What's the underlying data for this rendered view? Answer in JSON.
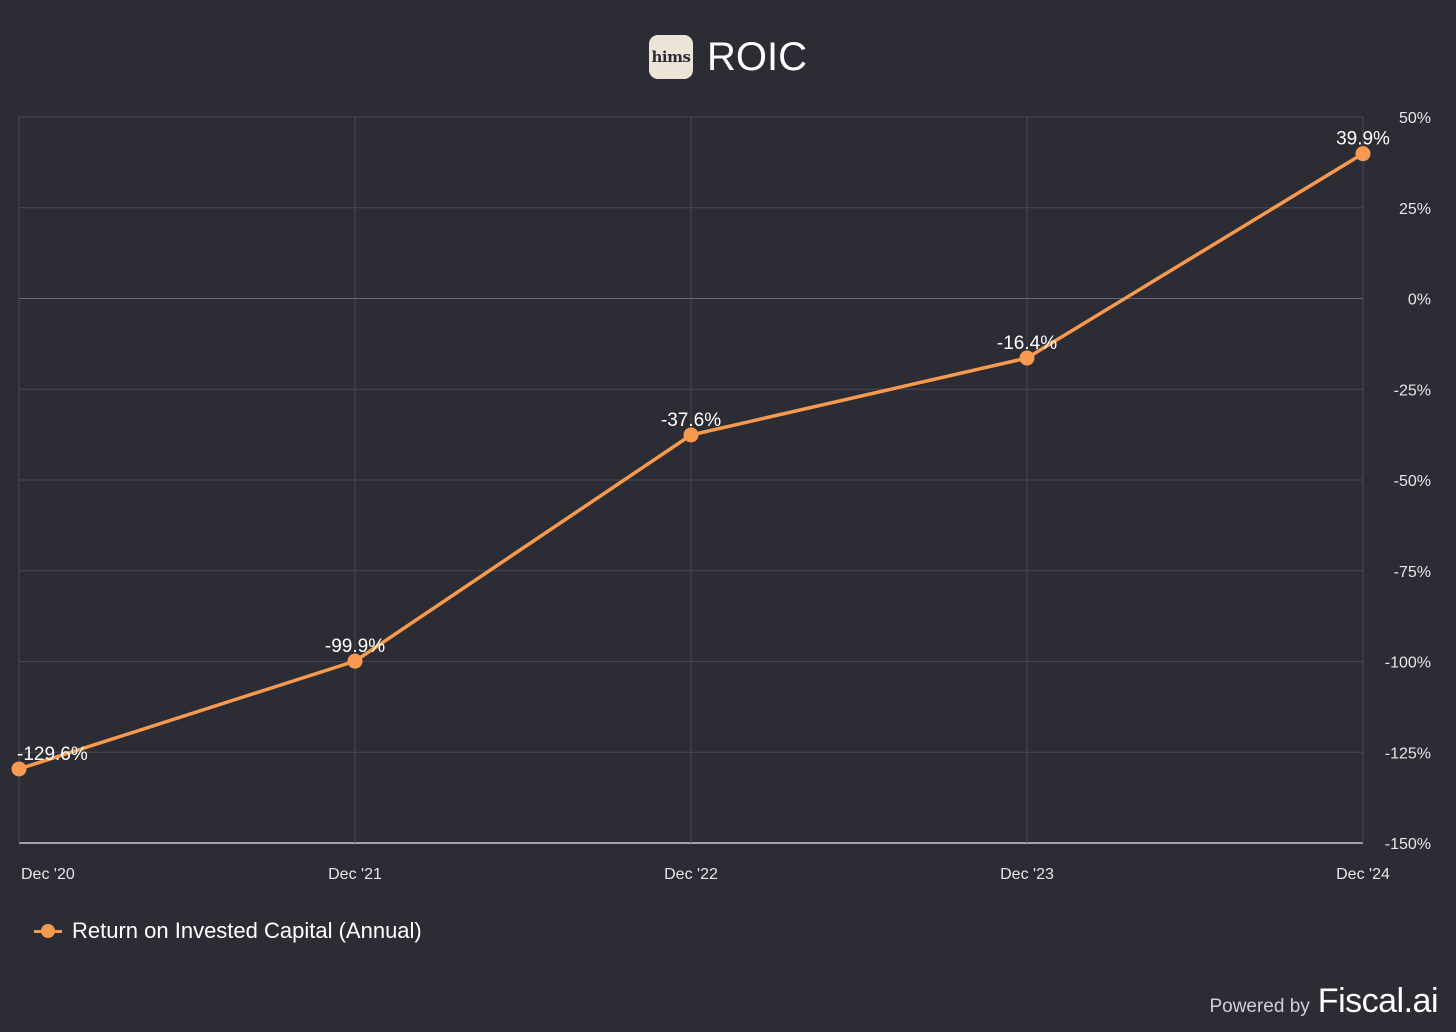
{
  "header": {
    "logo_text": "hims",
    "title": "ROIC"
  },
  "chart_data": {
    "type": "line",
    "title": "ROIC",
    "categories": [
      "Dec '20",
      "Dec '21",
      "Dec '22",
      "Dec '23",
      "Dec '24"
    ],
    "series": [
      {
        "name": "Return on Invested Capital (Annual)",
        "values": [
          -129.6,
          -99.9,
          -37.6,
          -16.4,
          39.9
        ],
        "labels": [
          "-129.6%",
          "-99.9%",
          "-37.6%",
          "-16.4%",
          "39.9%"
        ]
      }
    ],
    "ylim": [
      -150,
      50
    ],
    "yticks": [
      50,
      25,
      0,
      -25,
      -50,
      -75,
      -100,
      -125,
      -150
    ],
    "ytick_labels": [
      "50%",
      "25%",
      "0%",
      "-25%",
      "-50%",
      "-75%",
      "-100%",
      "-125%",
      "-150%"
    ],
    "y_axis_side": "right",
    "grid": true,
    "legend_position": "bottom-left",
    "line_color": "#f7994f"
  },
  "legend": {
    "label": "Return on Invested Capital (Annual)"
  },
  "footer": {
    "powered_by": "Powered by",
    "brand": "Fiscal.ai"
  },
  "colors": {
    "background": "#2b2c34",
    "accent": "#f7994f",
    "grid": "#4a4b55",
    "text": "#ffffff"
  }
}
